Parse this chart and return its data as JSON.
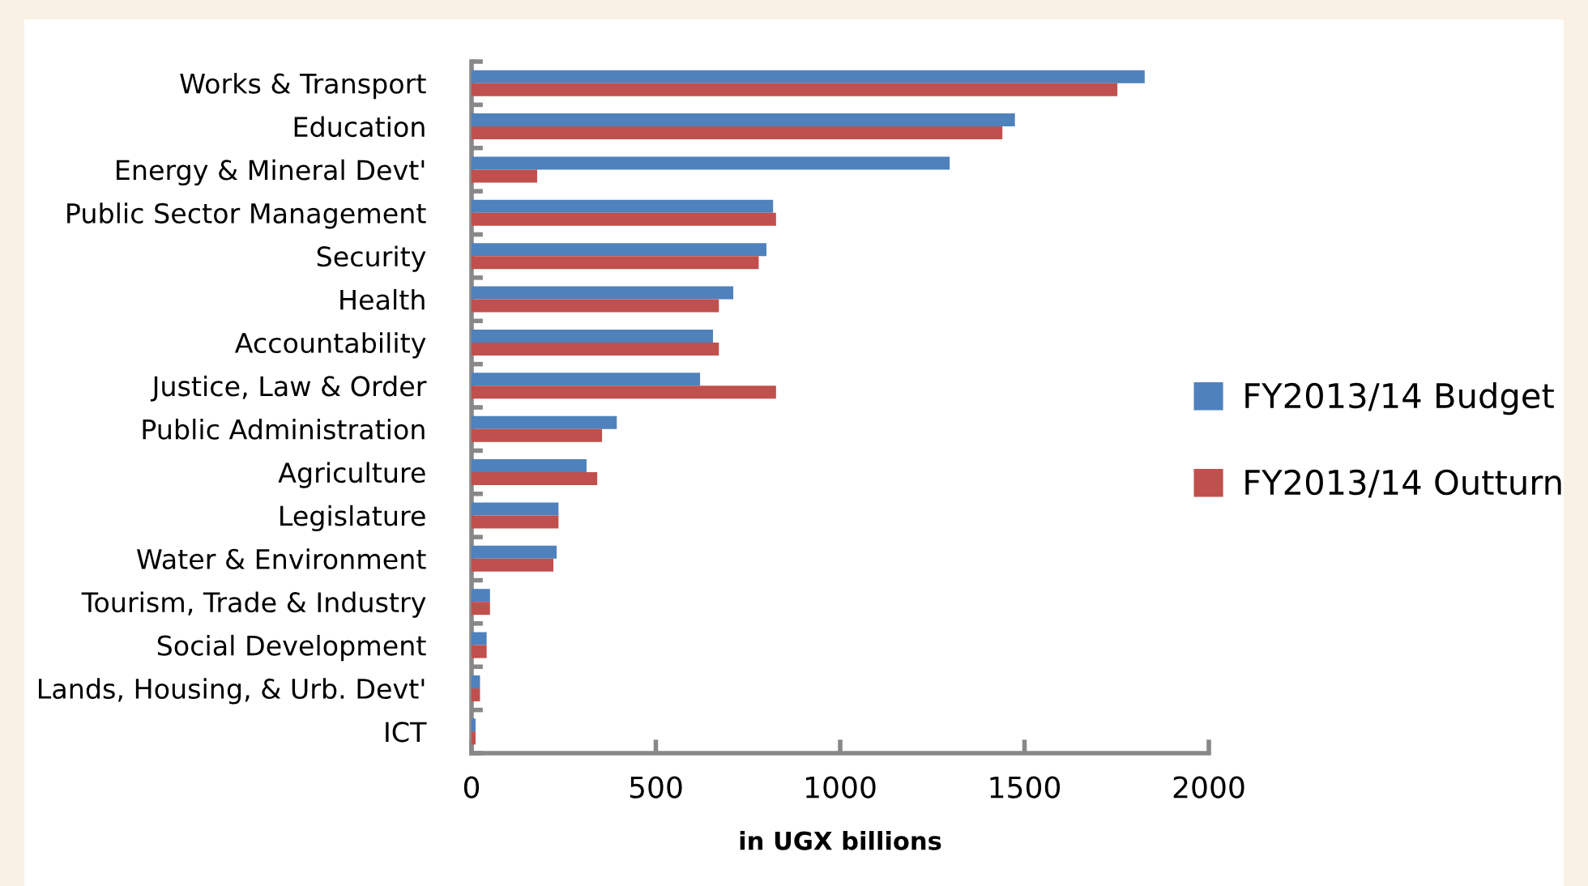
{
  "chart_data": {
    "type": "bar",
    "orientation": "horizontal",
    "xlabel": "in UGX billions",
    "categories": [
      "Works & Transport",
      "Education",
      "Energy & Mineral Devt'",
      "Public Sector Management",
      "Security",
      "Health",
      "Accountability",
      "Justice, Law & Order",
      "Public Administration",
      "Agriculture",
      "Legislature",
      "Water & Environment",
      "Tourism, Trade & Industry",
      "Social Development",
      "Lands, Housing, & Urb. Devt'",
      "ICT"
    ],
    "series": [
      {
        "name": "FY2013/14 Budget",
        "color": "#4f81bd",
        "values": [
          1826,
          1474,
          1297,
          818,
          800,
          710,
          655,
          620,
          394,
          312,
          236,
          231,
          50,
          41,
          23,
          11
        ]
      },
      {
        "name": "FY2013/14 Outturn",
        "color": "#c0504d",
        "values": [
          1752,
          1440,
          178,
          826,
          779,
          671,
          671,
          826,
          354,
          341,
          236,
          222,
          50,
          41,
          23,
          11
        ]
      }
    ],
    "xlim": [
      0,
      2000
    ],
    "xticks": [
      0,
      500,
      1000,
      1500,
      2000
    ],
    "grid": false,
    "legend": "right"
  }
}
